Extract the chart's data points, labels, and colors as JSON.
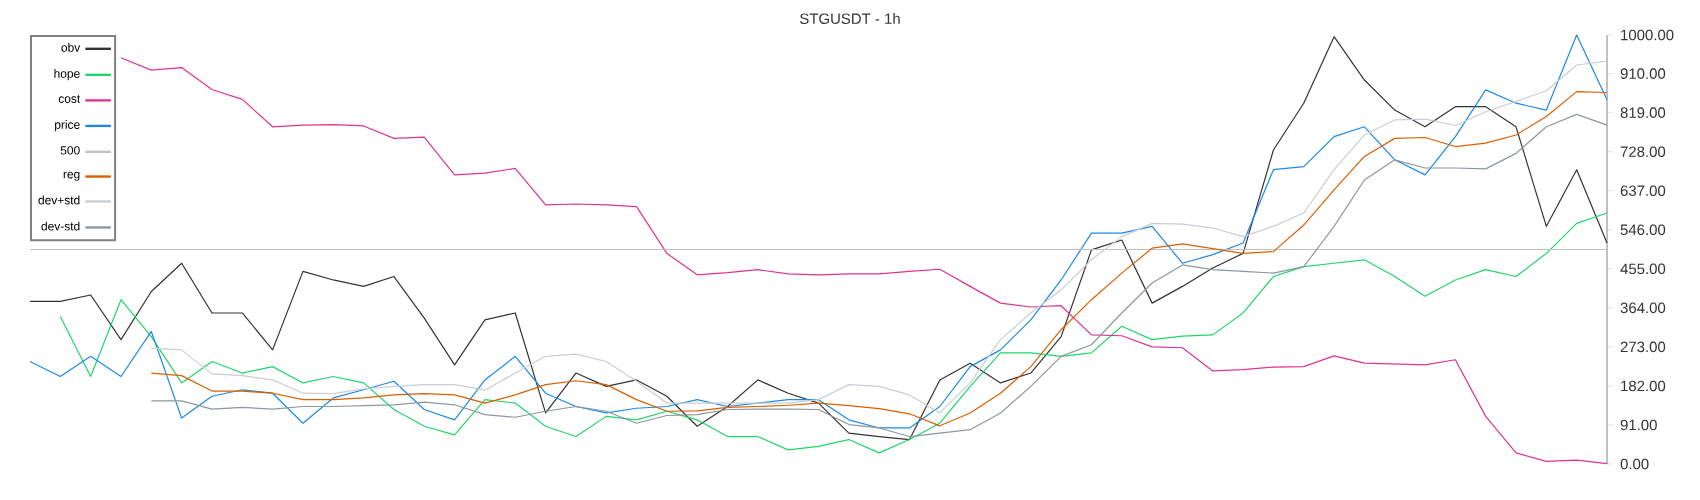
{
  "chart_data": {
    "type": "line",
    "title": "STGUSDT - 1h",
    "categories": [
      null,
      null,
      null,
      null,
      null,
      null,
      null,
      null,
      null,
      null,
      null,
      null,
      null,
      null,
      null,
      null,
      null,
      null,
      null,
      null,
      null,
      null,
      null,
      null,
      null,
      null,
      null,
      null,
      null,
      null,
      null,
      null,
      null,
      null,
      null,
      null,
      null,
      null,
      null,
      null,
      null,
      null,
      null,
      null,
      null,
      null,
      null,
      null,
      null,
      null,
      null,
      null,
      null
    ],
    "series": [
      {
        "name": "obv",
        "color": "#333333",
        "values": [
          379,
          379,
          394,
          290,
          402,
          468,
          352,
          352,
          266,
          449,
          429,
          414,
          437,
          340,
          231,
          336,
          352,
          119,
          212,
          181,
          196,
          158,
          88,
          134,
          196,
          165,
          142,
          72,
          64,
          57,
          196,
          235,
          189,
          212,
          297,
          499,
          522,
          375,
          414,
          457,
          491,
          732,
          841,
          996,
          895,
          825,
          786,
          833,
          833,
          786,
          554,
          686,
          515
        ]
      },
      {
        "name": "hope",
        "color": "#1fd66a",
        "values": [
          null,
          344,
          204,
          383,
          297,
          189,
          239,
          212,
          227,
          189,
          204,
          189,
          127,
          88,
          68,
          150,
          142,
          88,
          64,
          111,
          103,
          123,
          103,
          64,
          64,
          33,
          41,
          57,
          26,
          57,
          95,
          181,
          259,
          259,
          251,
          259,
          321,
          290,
          298,
          301,
          352,
          437,
          460,
          468,
          476,
          437,
          391,
          429,
          453,
          437,
          491,
          561,
          585
        ]
      },
      {
        "name": "cost",
        "color": "#e0338f",
        "values": [
          null,
          null,
          null,
          947,
          918,
          924,
          873,
          850,
          786,
          790,
          791,
          788,
          759,
          762,
          674,
          678,
          689,
          604,
          606,
          604,
          600,
          491,
          441,
          446,
          453,
          443,
          441,
          443,
          443,
          449,
          454,
          414,
          375,
          366,
          369,
          301,
          299,
          273,
          271,
          217,
          220,
          226,
          227,
          252,
          235,
          233,
          231,
          243,
          111,
          26,
          6,
          9,
          1
        ]
      },
      {
        "name": "price",
        "color": "#1e88e5",
        "values": [
          239,
          204,
          251,
          204,
          309,
          107,
          158,
          173,
          165,
          95,
          154,
          173,
          193,
          127,
          103,
          196,
          251,
          165,
          134,
          119,
          130,
          134,
          150,
          134,
          142,
          150,
          150,
          103,
          84,
          84,
          134,
          227,
          266,
          336,
          429,
          538,
          538,
          554,
          468,
          488,
          515,
          686,
          693,
          763,
          786,
          709,
          674,
          763,
          872,
          841,
          825,
          1000,
          849
        ]
      },
      {
        "name": "500",
        "color": "#c0c0c0",
        "values": [
          500,
          500,
          500,
          500,
          500,
          500,
          500,
          500,
          500,
          500,
          500,
          500,
          500,
          500,
          500,
          500,
          500,
          500,
          500,
          500,
          500,
          500,
          500,
          500,
          500,
          500,
          500,
          500,
          500,
          500,
          500,
          500,
          500,
          500,
          500,
          500,
          500,
          500,
          500,
          500,
          500,
          500,
          500,
          500,
          500,
          500,
          500,
          500,
          500,
          500,
          500,
          500,
          500
        ]
      },
      {
        "name": "reg",
        "color": "#d95f02",
        "values": [
          null,
          null,
          null,
          null,
          212,
          206,
          170,
          170,
          165,
          150,
          150,
          154,
          161,
          164,
          161,
          142,
          161,
          185,
          194,
          185,
          150,
          123,
          124,
          132,
          134,
          137,
          142,
          136,
          129,
          117,
          89,
          119,
          165,
          227,
          313,
          383,
          445,
          503,
          513,
          502,
          491,
          495,
          557,
          639,
          717,
          759,
          761,
          740,
          748,
          767,
          810,
          868,
          866
        ]
      },
      {
        "name": "dev+std",
        "color": "#c8ced3",
        "values": [
          null,
          null,
          null,
          null,
          270,
          266,
          210,
          206,
          196,
          165,
          164,
          175,
          181,
          185,
          185,
          172,
          212,
          251,
          256,
          239,
          193,
          142,
          142,
          142,
          142,
          142,
          150,
          185,
          181,
          161,
          119,
          189,
          290,
          352,
          406,
          476,
          530,
          561,
          559,
          550,
          530,
          554,
          585,
          686,
          767,
          802,
          804,
          789,
          821,
          845,
          870,
          930,
          939
        ]
      },
      {
        "name": "dev-std",
        "color": "#8d979e",
        "values": [
          null,
          null,
          null,
          null,
          147,
          147,
          128,
          132,
          128,
          134,
          134,
          136,
          138,
          144,
          138,
          115,
          109,
          123,
          134,
          123,
          95,
          113,
          115,
          127,
          128,
          128,
          127,
          92,
          84,
          64,
          72,
          80,
          119,
          181,
          251,
          278,
          352,
          422,
          464,
          453,
          449,
          445,
          460,
          554,
          662,
          709,
          690,
          690,
          688,
          724,
          786,
          815,
          790
        ]
      }
    ],
    "ylim": [
      0,
      1000
    ],
    "yticks": [
      {
        "value": 0,
        "label": "0.00"
      },
      {
        "value": 91,
        "label": "91.00"
      },
      {
        "value": 182,
        "label": "182.00"
      },
      {
        "value": 273,
        "label": "273.00"
      },
      {
        "value": 364,
        "label": "364.00"
      },
      {
        "value": 455,
        "label": "455.00"
      },
      {
        "value": 546,
        "label": "546.00"
      },
      {
        "value": 637,
        "label": "637.00"
      },
      {
        "value": 728,
        "label": "728.00"
      },
      {
        "value": 819,
        "label": "819.00"
      },
      {
        "value": 910,
        "label": "910.00"
      },
      {
        "value": 1000,
        "label": "1000.00"
      }
    ],
    "legend": "top left",
    "grid": false
  }
}
